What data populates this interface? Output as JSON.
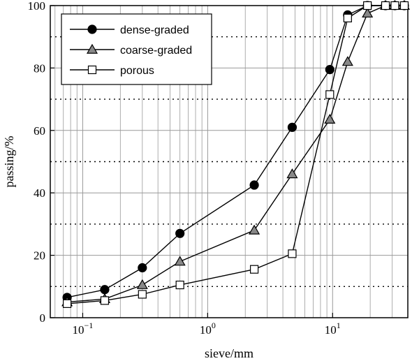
{
  "chart_data": {
    "type": "line",
    "xscale": "log",
    "xlim": [
      0.055,
      40
    ],
    "ylim": [
      0,
      100
    ],
    "xlabel": "sieve/mm",
    "ylabel": "passing/%",
    "xticks": [
      {
        "value": 0.1,
        "base": "10",
        "exp": "−1"
      },
      {
        "value": 1,
        "base": "10",
        "exp": "0"
      },
      {
        "value": 10,
        "base": "10",
        "exp": "1"
      }
    ],
    "yticks": [
      0,
      20,
      40,
      60,
      80,
      100
    ],
    "grid": "on",
    "legend_position": "top-left",
    "series": [
      {
        "name": "dense-graded",
        "marker": "circle",
        "color": "#000000",
        "points": [
          {
            "x": 0.075,
            "y": 6.5
          },
          {
            "x": 0.15,
            "y": 9
          },
          {
            "x": 0.3,
            "y": 16
          },
          {
            "x": 0.6,
            "y": 27
          },
          {
            "x": 2.36,
            "y": 42.5
          },
          {
            "x": 4.75,
            "y": 61
          },
          {
            "x": 9.5,
            "y": 79.5
          },
          {
            "x": 13.2,
            "y": 97
          },
          {
            "x": 19,
            "y": 100
          },
          {
            "x": 26.5,
            "y": 100
          },
          {
            "x": 31.5,
            "y": 100
          },
          {
            "x": 37.5,
            "y": 100
          }
        ]
      },
      {
        "name": "coarse-graded",
        "marker": "triangle",
        "color": "#888888",
        "points": [
          {
            "x": 0.075,
            "y": 5
          },
          {
            "x": 0.15,
            "y": 6
          },
          {
            "x": 0.3,
            "y": 10.5
          },
          {
            "x": 0.6,
            "y": 18
          },
          {
            "x": 2.36,
            "y": 28
          },
          {
            "x": 4.75,
            "y": 46
          },
          {
            "x": 9.5,
            "y": 63.5
          },
          {
            "x": 13.2,
            "y": 82
          },
          {
            "x": 19,
            "y": 97.5
          },
          {
            "x": 26.5,
            "y": 100
          },
          {
            "x": 31.5,
            "y": 100
          },
          {
            "x": 37.5,
            "y": 100
          }
        ]
      },
      {
        "name": "porous",
        "marker": "square",
        "color": "#ffffff",
        "points": [
          {
            "x": 0.075,
            "y": 4.5
          },
          {
            "x": 0.15,
            "y": 5.5
          },
          {
            "x": 0.3,
            "y": 7.5
          },
          {
            "x": 0.6,
            "y": 10.5
          },
          {
            "x": 2.36,
            "y": 15.5
          },
          {
            "x": 4.75,
            "y": 20.5
          },
          {
            "x": 9.5,
            "y": 71.5
          },
          {
            "x": 13.2,
            "y": 96
          },
          {
            "x": 19,
            "y": 100
          },
          {
            "x": 26.5,
            "y": 100
          },
          {
            "x": 31.5,
            "y": 100
          },
          {
            "x": 37.5,
            "y": 100
          }
        ]
      }
    ]
  }
}
